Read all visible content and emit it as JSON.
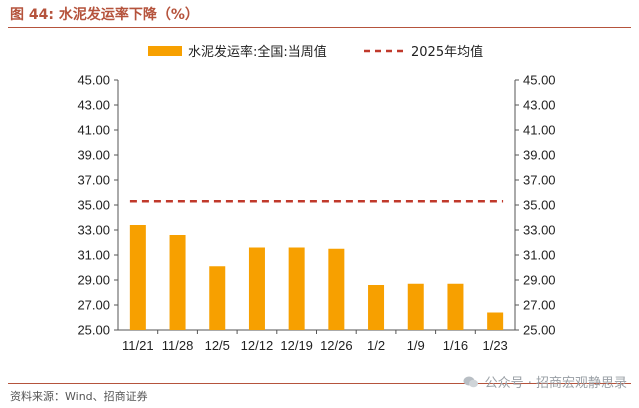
{
  "title": "图 44:  水泥发运率下降（%）",
  "source": "资料来源：Wind、招商证券",
  "watermark": "公众号 · 招商宏观静思录",
  "colors": {
    "bar": "#f7a000",
    "avg_line": "#c0392b",
    "accent": "#b5533c"
  },
  "chart_data": {
    "type": "bar",
    "categories": [
      "11/21",
      "11/28",
      "12/5",
      "12/12",
      "12/19",
      "12/26",
      "1/2",
      "1/9",
      "1/16",
      "1/23"
    ],
    "series": [
      {
        "name": "水泥发运率:全国:当周值",
        "type": "bar",
        "values": [
          33.4,
          32.6,
          30.1,
          31.6,
          31.6,
          31.5,
          28.6,
          28.7,
          28.7,
          26.4
        ]
      },
      {
        "name": "2025年均值",
        "type": "line-dashed",
        "values": [
          35.3,
          35.3,
          35.3,
          35.3,
          35.3,
          35.3,
          35.3,
          35.3,
          35.3,
          35.3
        ]
      }
    ],
    "ylim": [
      25,
      45
    ],
    "yticks": [
      "45.00",
      "43.00",
      "41.00",
      "39.00",
      "37.00",
      "35.00",
      "33.00",
      "31.00",
      "29.00",
      "27.00",
      "25.00"
    ],
    "legend_position": "top",
    "grid": false
  }
}
